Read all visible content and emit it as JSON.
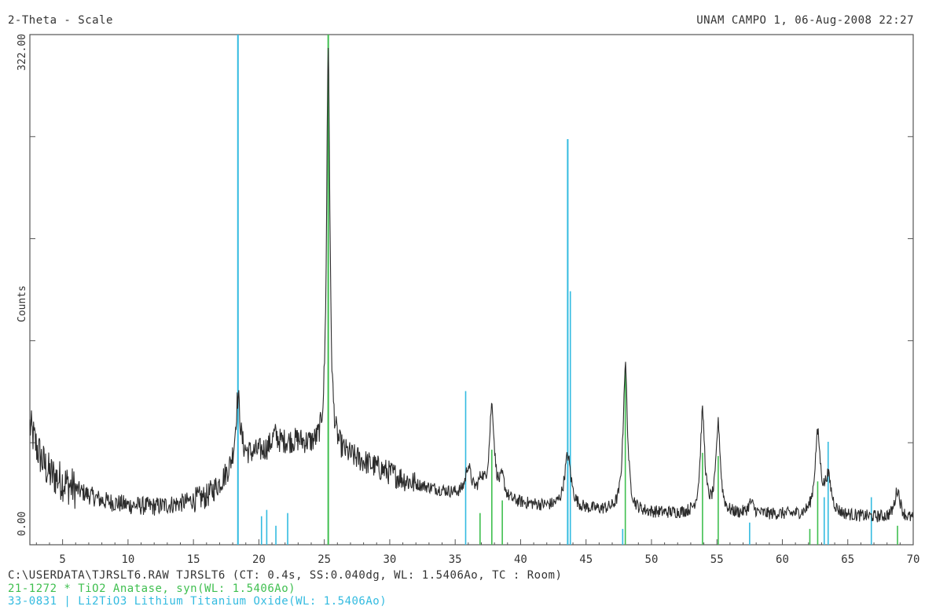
{
  "header": {
    "left": "2-Theta - Scale",
    "right": "UNAM CAMPO 1, 06-Aug-2008 22:27"
  },
  "footer": {
    "line1": "C:\\USERDATA\\TJRSLT6.RAW TJRSLT6 (CT:  0.4s, SS:0.040dg, WL: 1.5406Ao, TC : Room)",
    "line2": "21-1272 * TiO2 Anatase, syn(WL: 1.5406Ao)",
    "line3": "33-0831 | Li2TiO3 Lithium Titanium Oxide(WL: 1.5406Ao)"
  },
  "colors": {
    "pattern": "#2b2b2b",
    "anatase": "#3fbf4f",
    "li2tio3": "#33bbe0",
    "axis": "#555555"
  },
  "chart_data": {
    "type": "line",
    "xlabel": "",
    "ylabel": "Counts",
    "xlim": [
      2.5,
      70
    ],
    "ylim": [
      0,
      322
    ],
    "x_ticks": [
      5,
      10,
      15,
      20,
      25,
      30,
      35,
      40,
      45,
      50,
      55,
      60,
      65,
      70
    ],
    "y_tick_labels": [
      "0.00",
      "322.00"
    ],
    "background": {
      "x": [
        2.5,
        3,
        3.5,
        4,
        6,
        8,
        10,
        12,
        14,
        16,
        17,
        18,
        19,
        20,
        21,
        22,
        23,
        24,
        26,
        28,
        30,
        32,
        35,
        38,
        40,
        42,
        45,
        50,
        55,
        60,
        62,
        65,
        68,
        70
      ],
      "y": [
        75,
        62,
        52,
        45,
        35,
        28,
        25,
        24,
        26,
        30,
        38,
        48,
        55,
        58,
        60,
        64,
        65,
        62,
        58,
        52,
        45,
        38,
        32,
        28,
        26,
        24,
        22,
        20,
        19,
        19,
        18,
        18,
        17,
        16
      ]
    },
    "peaks": [
      {
        "x": 18.4,
        "height": 42,
        "width": 0.22
      },
      {
        "x": 21.2,
        "height": 8,
        "width": 0.3
      },
      {
        "x": 25.3,
        "height": 255,
        "width": 0.15
      },
      {
        "x": 36.0,
        "height": 18,
        "width": 0.25
      },
      {
        "x": 37.0,
        "height": 10,
        "width": 0.25
      },
      {
        "x": 37.8,
        "height": 58,
        "width": 0.22
      },
      {
        "x": 38.6,
        "height": 12,
        "width": 0.22
      },
      {
        "x": 43.6,
        "height": 33,
        "width": 0.3
      },
      {
        "x": 48.0,
        "height": 92,
        "width": 0.2
      },
      {
        "x": 53.9,
        "height": 63,
        "width": 0.2
      },
      {
        "x": 55.1,
        "height": 56,
        "width": 0.2
      },
      {
        "x": 57.6,
        "height": 7,
        "width": 0.25
      },
      {
        "x": 62.7,
        "height": 50,
        "width": 0.25
      },
      {
        "x": 63.5,
        "height": 22,
        "width": 0.3
      },
      {
        "x": 68.8,
        "height": 18,
        "width": 0.25
      }
    ],
    "series": [
      {
        "name": "21-1272 * TiO2 Anatase, syn(WL: 1.5406Ao)",
        "kind": "stick",
        "color": "#3fbf4f",
        "x": [
          25.3,
          36.9,
          37.8,
          38.6,
          48.0,
          53.9,
          55.1,
          62.1,
          62.7,
          68.8
        ],
        "y": [
          322,
          20,
          60,
          28,
          110,
          58,
          56,
          10,
          40,
          12
        ]
      },
      {
        "name": "33-0831 | Li2TiO3 Lithium Titanium Oxide(WL: 1.5406Ao)",
        "kind": "stick",
        "color": "#33bbe0",
        "x": [
          18.4,
          20.2,
          20.6,
          21.3,
          22.2,
          35.8,
          43.6,
          43.8,
          47.8,
          57.5,
          63.2,
          63.5,
          66.8
        ],
        "y": [
          322,
          18,
          22,
          12,
          20,
          97,
          256,
          160,
          10,
          14,
          30,
          65,
          30
        ]
      }
    ]
  }
}
